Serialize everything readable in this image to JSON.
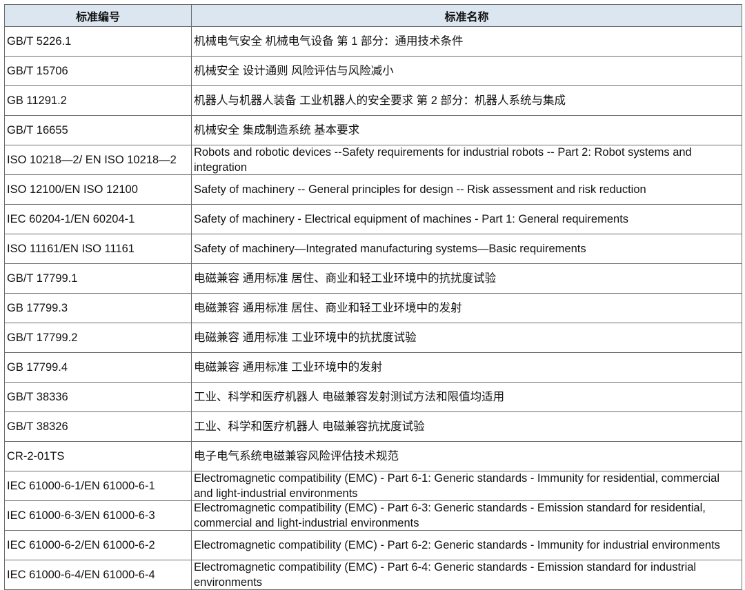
{
  "table": {
    "headers": [
      "标准编号",
      "标准名称"
    ],
    "header_bg": "#dce6f1",
    "rows": [
      {
        "code": "GB/T 5226.1",
        "name": "机械电气安全 机械电气设备 第 1 部分：通用技术条件"
      },
      {
        "code": "GB/T 15706",
        "name": "机械安全 设计通则 风险评估与风险减小"
      },
      {
        "code": "GB 11291.2",
        "name": "机器人与机器人装备 工业机器人的安全要求 第 2 部分：机器人系统与集成"
      },
      {
        "code": "GB/T 16655",
        "name": "机械安全 集成制造系统 基本要求"
      },
      {
        "code": "ISO 10218—2/ EN ISO 10218—2",
        "name": "Robots and robotic devices --Safety requirements for industrial robots -- Part 2: Robot systems and integration"
      },
      {
        "code": "ISO 12100/EN ISO 12100",
        "name": "Safety of machinery -- General principles for design -- Risk assessment and risk reduction"
      },
      {
        "code": "IEC 60204-1/EN 60204-1",
        "name": "Safety of machinery - Electrical equipment of machines - Part 1: General requirements"
      },
      {
        "code": "ISO 11161/EN ISO 11161",
        "name": "Safety of machinery—Integrated manufacturing systems—Basic requirements"
      },
      {
        "code": "GB/T 17799.1",
        "name": "电磁兼容 通用标准 居住、商业和轻工业环境中的抗扰度试验"
      },
      {
        "code": "GB 17799.3",
        "name": "电磁兼容 通用标准 居住、商业和轻工业环境中的发射"
      },
      {
        "code": "GB/T 17799.2",
        "name": "电磁兼容 通用标准 工业环境中的抗扰度试验"
      },
      {
        "code": "GB 17799.4",
        "name": "电磁兼容 通用标准 工业环境中的发射"
      },
      {
        "code": "GB/T 38336",
        "name": "工业、科学和医疗机器人 电磁兼容发射测试方法和限值均适用"
      },
      {
        "code": "GB/T 38326",
        "name": "工业、科学和医疗机器人 电磁兼容抗扰度试验"
      },
      {
        "code": "CR-2-01TS",
        "name": "电子电气系统电磁兼容风险评估技术规范"
      },
      {
        "code": "IEC 61000-6-1/EN 61000-6-1",
        "name": "Electromagnetic compatibility (EMC) - Part 6-1: Generic standards - Immunity for residential, commercial and light-industrial environments"
      },
      {
        "code": "IEC 61000-6-3/EN 61000-6-3",
        "name": "Electromagnetic compatibility (EMC) - Part 6-3: Generic standards - Emission standard for residential, commercial and light-industrial environments"
      },
      {
        "code": "IEC 61000-6-2/EN 61000-6-2",
        "name": "Electromagnetic compatibility (EMC) - Part 6-2: Generic standards - Immunity for industrial environments"
      },
      {
        "code": "IEC 61000-6-4/EN 61000-6-4",
        "name": "Electromagnetic compatibility (EMC) - Part 6-4: Generic standards - Emission standard for industrial environments"
      }
    ]
  }
}
